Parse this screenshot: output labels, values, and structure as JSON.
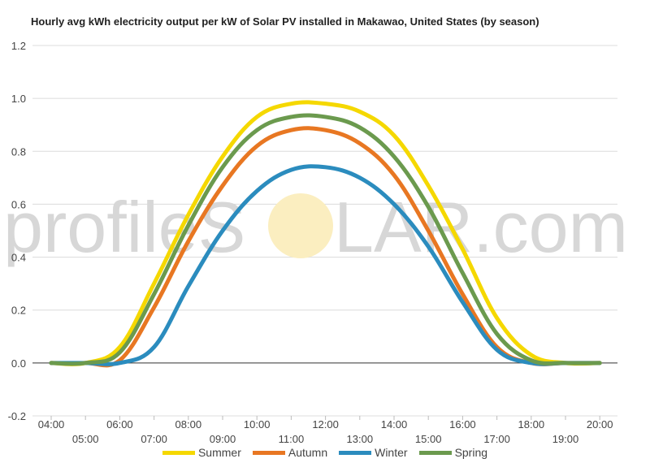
{
  "chart_data": {
    "type": "line",
    "title": "Hourly avg kWh electricity output per kW of Solar PV installed in Makawao, United States (by season)",
    "ylim": [
      -0.2,
      1.2
    ],
    "yticks": [
      "-0.2",
      "0.0",
      "0.2",
      "0.4",
      "0.6",
      "0.8",
      "1.0",
      "1.2"
    ],
    "ytick_values": [
      -0.2,
      0.0,
      0.2,
      0.4,
      0.6,
      0.8,
      1.0,
      1.2
    ],
    "x_categories": [
      "04:00",
      "05:00",
      "06:00",
      "07:00",
      "08:00",
      "09:00",
      "10:00",
      "11:00",
      "12:00",
      "13:00",
      "14:00",
      "15:00",
      "16:00",
      "17:00",
      "18:00",
      "19:00",
      "20:00"
    ],
    "grid": true,
    "legend_position": "bottom",
    "series": [
      {
        "name": "Summer",
        "color": "#f5d800",
        "values": [
          0.0,
          0.0,
          0.06,
          0.3,
          0.56,
          0.78,
          0.93,
          0.98,
          0.98,
          0.95,
          0.86,
          0.67,
          0.43,
          0.17,
          0.03,
          0.0,
          0.0
        ]
      },
      {
        "name": "Autumn",
        "color": "#e87722",
        "values": [
          0.0,
          0.0,
          0.01,
          0.21,
          0.46,
          0.67,
          0.82,
          0.88,
          0.88,
          0.83,
          0.71,
          0.5,
          0.26,
          0.06,
          0.0,
          0.0,
          0.0
        ]
      },
      {
        "name": "Winter",
        "color": "#2b8cbe",
        "values": [
          0.0,
          0.0,
          0.0,
          0.06,
          0.29,
          0.5,
          0.65,
          0.73,
          0.74,
          0.7,
          0.6,
          0.44,
          0.23,
          0.05,
          0.0,
          0.0,
          0.0
        ]
      },
      {
        "name": "Spring",
        "color": "#6b9a4e",
        "values": [
          0.0,
          0.0,
          0.04,
          0.26,
          0.52,
          0.74,
          0.88,
          0.93,
          0.93,
          0.89,
          0.78,
          0.59,
          0.34,
          0.11,
          0.01,
          0.0,
          0.0
        ]
      }
    ]
  },
  "watermark": {
    "text_left": "profileS",
    "text_right": "LAR.com",
    "sun_color": "#fbeec0"
  }
}
